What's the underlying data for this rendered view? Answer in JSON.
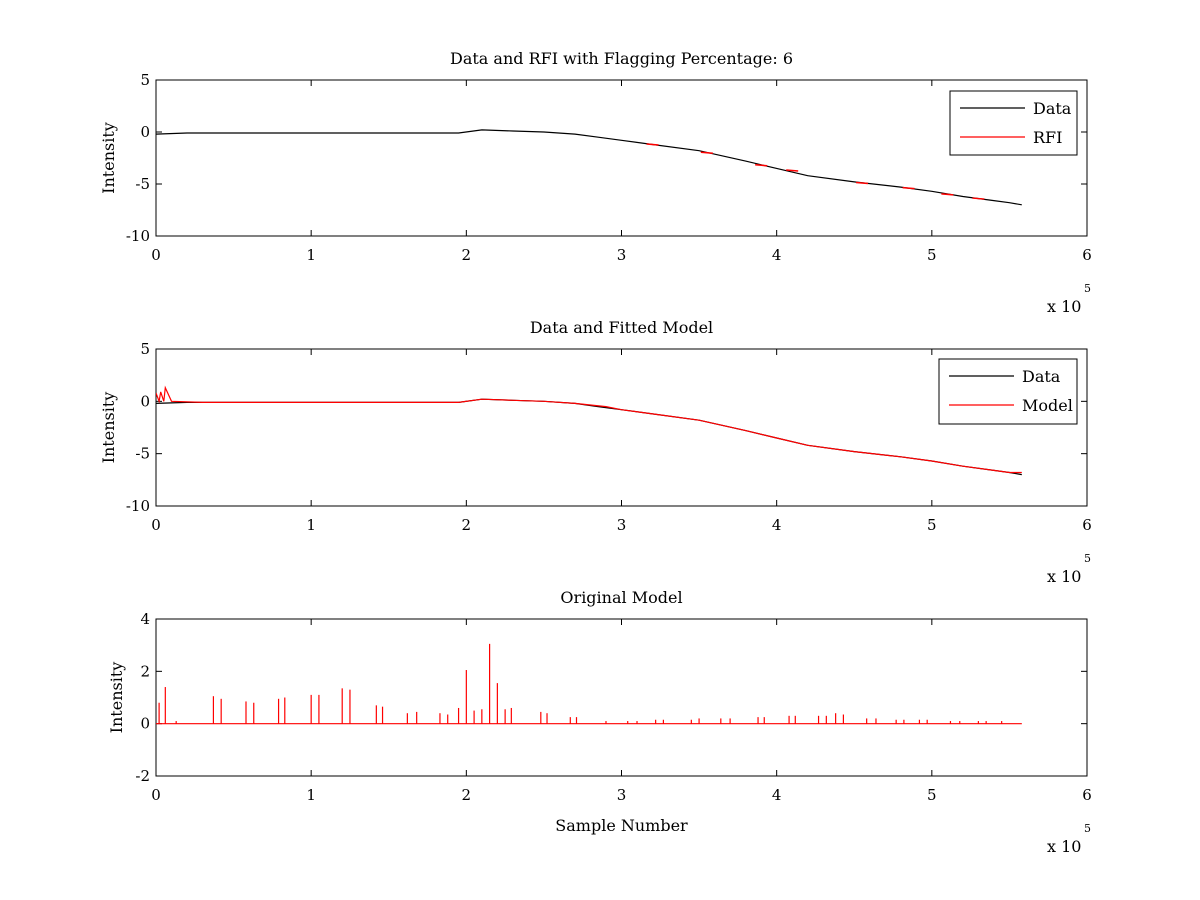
{
  "figure": {
    "background": "#ffffff"
  },
  "chart_data": [
    {
      "type": "line",
      "title": "Data and RFI with Flagging Percentage: 6",
      "xlabel": "",
      "ylabel": "Intensity",
      "xlim": [
        0,
        6
      ],
      "ylim": [
        -10,
        5
      ],
      "x_multiplier": "x 10",
      "x_exponent": "5",
      "xticks": [
        0,
        1,
        2,
        3,
        4,
        5,
        6
      ],
      "yticks": [
        -10,
        -5,
        0,
        5
      ],
      "legend_position": "top-right",
      "series": [
        {
          "name": "Data",
          "color": "#000000",
          "x": [
            0,
            0.2,
            0.5,
            1.0,
            1.5,
            1.95,
            2.1,
            2.3,
            2.5,
            2.7,
            2.85,
            3.0,
            3.2,
            3.5,
            3.8,
            4.0,
            4.2,
            4.5,
            4.8,
            5.0,
            5.2,
            5.4,
            5.5,
            5.58
          ],
          "y": [
            -0.2,
            -0.1,
            -0.1,
            -0.1,
            -0.1,
            -0.1,
            0.2,
            0.1,
            0.0,
            -0.2,
            -0.5,
            -0.8,
            -1.2,
            -1.8,
            -2.8,
            -3.5,
            -4.2,
            -4.8,
            -5.3,
            -5.7,
            -6.2,
            -6.6,
            -6.8,
            -7.0
          ]
        },
        {
          "name": "RFI",
          "color": "#ff0000",
          "x": [
            3.2,
            3.55,
            3.9,
            4.1,
            4.55,
            4.85,
            5.1,
            5.3
          ],
          "y": [
            -1.2,
            -2.0,
            -3.2,
            -3.7,
            -4.9,
            -5.4,
            -6.0,
            -6.4
          ]
        }
      ]
    },
    {
      "type": "line",
      "title": "Data and Fitted Model",
      "xlabel": "",
      "ylabel": "Intensity",
      "xlim": [
        0,
        6
      ],
      "ylim": [
        -10,
        5
      ],
      "x_multiplier": "x 10",
      "x_exponent": "5",
      "xticks": [
        0,
        1,
        2,
        3,
        4,
        5,
        6
      ],
      "yticks": [
        -10,
        -5,
        0,
        5
      ],
      "legend_position": "top-right",
      "series": [
        {
          "name": "Data",
          "color": "#000000",
          "x": [
            0,
            0.2,
            0.5,
            1.0,
            1.5,
            1.95,
            2.1,
            2.3,
            2.5,
            2.7,
            2.85,
            3.0,
            3.2,
            3.5,
            3.8,
            4.0,
            4.2,
            4.5,
            4.8,
            5.0,
            5.2,
            5.4,
            5.5,
            5.58
          ],
          "y": [
            -0.2,
            -0.1,
            -0.1,
            -0.1,
            -0.1,
            -0.1,
            0.2,
            0.1,
            0.0,
            -0.2,
            -0.5,
            -0.8,
            -1.2,
            -1.8,
            -2.8,
            -3.5,
            -4.2,
            -4.8,
            -5.3,
            -5.7,
            -6.2,
            -6.6,
            -6.8,
            -7.0
          ]
        },
        {
          "name": "Model",
          "color": "#ff0000",
          "x": [
            0,
            0.02,
            0.03,
            0.05,
            0.06,
            0.1,
            0.3,
            0.5,
            1.0,
            1.5,
            1.95,
            2.1,
            2.3,
            2.5,
            2.7,
            2.9,
            3.0,
            3.2,
            3.5,
            3.8,
            4.0,
            4.2,
            4.5,
            4.8,
            5.0,
            5.2,
            5.4,
            5.5,
            5.58
          ],
          "y": [
            0.8,
            0.0,
            0.9,
            0.0,
            1.3,
            0.0,
            -0.1,
            -0.1,
            -0.1,
            -0.1,
            -0.1,
            0.2,
            0.1,
            0.0,
            -0.2,
            -0.5,
            -0.8,
            -1.2,
            -1.8,
            -2.8,
            -3.5,
            -4.2,
            -4.8,
            -5.3,
            -5.7,
            -6.2,
            -6.6,
            -6.8,
            -6.8
          ]
        }
      ]
    },
    {
      "type": "line",
      "title": "Original Model",
      "xlabel": "Sample Number",
      "ylabel": "Intensity",
      "xlim": [
        0,
        6
      ],
      "ylim": [
        -2,
        4
      ],
      "x_multiplier": "x 10",
      "x_exponent": "5",
      "xticks": [
        0,
        1,
        2,
        3,
        4,
        5,
        6
      ],
      "yticks": [
        -2,
        0,
        2,
        4
      ],
      "baseline": 0,
      "x_end": 5.58,
      "series": [
        {
          "name": "",
          "color": "#ff0000",
          "spikes_x": [
            0.02,
            0.06,
            0.13,
            0.37,
            0.42,
            0.58,
            0.63,
            0.79,
            0.83,
            1.0,
            1.05,
            1.2,
            1.25,
            1.42,
            1.46,
            1.62,
            1.68,
            1.83,
            1.88,
            1.95,
            2.0,
            2.05,
            2.1,
            2.15,
            2.2,
            2.25,
            2.29,
            2.48,
            2.52,
            2.67,
            2.71,
            2.9,
            3.04,
            3.1,
            3.22,
            3.27,
            3.45,
            3.5,
            3.64,
            3.7,
            3.88,
            3.92,
            4.08,
            4.12,
            4.27,
            4.32,
            4.38,
            4.43,
            4.58,
            4.64,
            4.77,
            4.82,
            4.92,
            4.97,
            5.12,
            5.18,
            5.3,
            5.35,
            5.45
          ],
          "spikes_y": [
            0.8,
            1.4,
            0.1,
            1.05,
            0.95,
            0.85,
            0.8,
            0.95,
            1.0,
            1.1,
            1.1,
            1.35,
            1.3,
            0.7,
            0.65,
            0.4,
            0.45,
            0.4,
            0.35,
            0.6,
            2.05,
            0.5,
            0.55,
            3.05,
            1.55,
            0.55,
            0.6,
            0.45,
            0.4,
            0.25,
            0.25,
            0.1,
            0.1,
            0.1,
            0.15,
            0.15,
            0.15,
            0.2,
            0.2,
            0.2,
            0.25,
            0.25,
            0.3,
            0.3,
            0.3,
            0.3,
            0.4,
            0.35,
            0.2,
            0.2,
            0.15,
            0.15,
            0.15,
            0.15,
            0.1,
            0.1,
            0.1,
            0.1,
            0.1
          ]
        }
      ]
    }
  ]
}
